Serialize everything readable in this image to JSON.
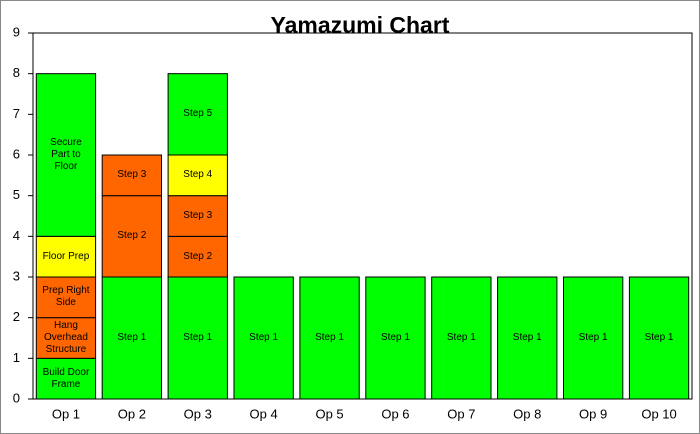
{
  "chart_data": {
    "type": "stacked_bar",
    "title": "Yamazumi Chart",
    "categories": [
      "Op 1",
      "Op 2",
      "Op 3",
      "Op 4",
      "Op 5",
      "Op 6",
      "Op 7",
      "Op 8",
      "Op 9",
      "Op 10"
    ],
    "stacks": [
      {
        "segments": [
          {
            "label": "Build Door Frame",
            "value": 1,
            "color": "#00ff00"
          },
          {
            "label": "Hang Overhead Structure",
            "value": 1,
            "color": "#ff6600"
          },
          {
            "label": "Prep Right Side",
            "value": 1,
            "color": "#ff6600"
          },
          {
            "label": "Floor Prep",
            "value": 1,
            "color": "#ffff00"
          },
          {
            "label": "Secure Part to Floor",
            "value": 4,
            "color": "#00ff00"
          }
        ]
      },
      {
        "segments": [
          {
            "label": "Step 1",
            "value": 3,
            "color": "#00ff00"
          },
          {
            "label": "Step 2",
            "value": 2,
            "color": "#ff6600"
          },
          {
            "label": "Step 3",
            "value": 1,
            "color": "#ff6600"
          }
        ]
      },
      {
        "segments": [
          {
            "label": "Step 1",
            "value": 3,
            "color": "#00ff00"
          },
          {
            "label": "Step 2",
            "value": 1,
            "color": "#ff6600"
          },
          {
            "label": "Step 3",
            "value": 1,
            "color": "#ff6600"
          },
          {
            "label": "Step 4",
            "value": 1,
            "color": "#ffff00"
          },
          {
            "label": "Step 5",
            "value": 2,
            "color": "#00ff00"
          }
        ]
      },
      {
        "segments": [
          {
            "label": "Step 1",
            "value": 3,
            "color": "#00ff00"
          }
        ]
      },
      {
        "segments": [
          {
            "label": "Step 1",
            "value": 3,
            "color": "#00ff00"
          }
        ]
      },
      {
        "segments": [
          {
            "label": "Step 1",
            "value": 3,
            "color": "#00ff00"
          }
        ]
      },
      {
        "segments": [
          {
            "label": "Step 1",
            "value": 3,
            "color": "#00ff00"
          }
        ]
      },
      {
        "segments": [
          {
            "label": "Step 1",
            "value": 3,
            "color": "#00ff00"
          }
        ]
      },
      {
        "segments": [
          {
            "label": "Step 1",
            "value": 3,
            "color": "#00ff00"
          }
        ]
      },
      {
        "segments": [
          {
            "label": "Step 1",
            "value": 3,
            "color": "#00ff00"
          }
        ]
      }
    ],
    "ylim": [
      0,
      9
    ],
    "yticks": [
      0,
      1,
      2,
      3,
      4,
      5,
      6,
      7,
      8,
      9
    ],
    "grid": false
  }
}
